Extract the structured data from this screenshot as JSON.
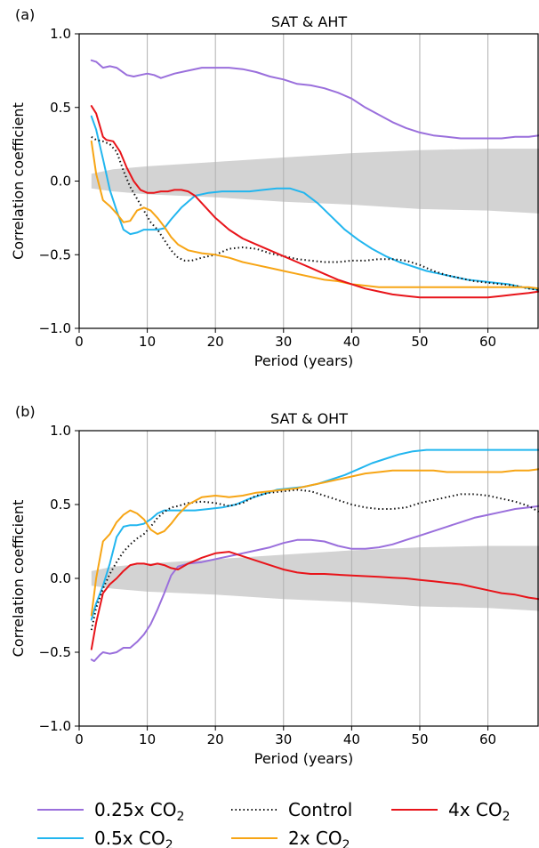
{
  "legend": {
    "items": [
      {
        "label": "0.25x CO",
        "sub": "2",
        "color": "#9a6fdc",
        "dash": "solid"
      },
      {
        "label": "Control",
        "sub": "",
        "color": "#111111",
        "dash": "dotted"
      },
      {
        "label": "4x CO",
        "sub": "2",
        "color": "#e8141a",
        "dash": "solid"
      },
      {
        "label": "0.5x CO",
        "sub": "2",
        "color": "#22b6ef",
        "dash": "solid"
      },
      {
        "label": "2x CO",
        "sub": "2",
        "color": "#f7a515",
        "dash": "solid"
      }
    ]
  },
  "chart_data": [
    {
      "type": "line",
      "panel_label": "(a)",
      "title": "SAT & AHT",
      "xlabel": "Period (years)",
      "ylabel": "Correlation coefficient",
      "xlim": [
        0,
        67.5
      ],
      "ylim": [
        -1.0,
        1.0
      ],
      "xticks": [
        0,
        10,
        20,
        30,
        40,
        50,
        60
      ],
      "yticks": [
        -1.0,
        -0.5,
        0.0,
        0.5,
        1.0
      ],
      "ytick_labels": [
        "−1.0",
        "−0.5",
        "0.0",
        "0.5",
        "1.0"
      ],
      "grid": "vertical",
      "band": {
        "x": [
          1.8,
          5,
          10,
          20,
          30,
          40,
          50,
          60,
          67.5
        ],
        "lower": [
          -0.05,
          -0.07,
          -0.09,
          -0.11,
          -0.14,
          -0.16,
          -0.19,
          -0.2,
          -0.22
        ],
        "upper": [
          0.05,
          0.08,
          0.1,
          0.13,
          0.16,
          0.19,
          0.21,
          0.22,
          0.22
        ]
      },
      "series": [
        {
          "name": "0.25x CO2",
          "color": "#9a6fdc",
          "dash": "solid",
          "x": [
            1.8,
            2.5,
            3.5,
            4.5,
            5.5,
            7,
            8,
            9,
            10,
            11,
            12,
            14,
            16,
            18,
            20,
            22,
            24,
            26,
            28,
            30,
            32,
            34,
            36,
            38,
            40,
            42,
            44,
            46,
            48,
            50,
            52,
            54,
            56,
            58,
            60,
            62,
            64,
            66,
            67.5
          ],
          "y": [
            0.82,
            0.81,
            0.77,
            0.78,
            0.77,
            0.72,
            0.71,
            0.72,
            0.73,
            0.72,
            0.7,
            0.73,
            0.75,
            0.77,
            0.77,
            0.77,
            0.76,
            0.74,
            0.71,
            0.69,
            0.66,
            0.65,
            0.63,
            0.6,
            0.56,
            0.5,
            0.45,
            0.4,
            0.36,
            0.33,
            0.31,
            0.3,
            0.29,
            0.29,
            0.29,
            0.29,
            0.3,
            0.3,
            0.31
          ]
        },
        {
          "name": "0.5x CO2",
          "color": "#22b6ef",
          "dash": "solid",
          "x": [
            1.8,
            2.5,
            3.5,
            4.5,
            5.5,
            6.5,
            7.5,
            8.5,
            9.5,
            10.5,
            11.5,
            12.5,
            13.5,
            15,
            17,
            19,
            21,
            23,
            25,
            27,
            29,
            31,
            33,
            35,
            37,
            39,
            41,
            43,
            45,
            47,
            49,
            51,
            53,
            55,
            57,
            59,
            61,
            63,
            65,
            67.5
          ],
          "y": [
            0.44,
            0.35,
            0.15,
            -0.06,
            -0.2,
            -0.33,
            -0.36,
            -0.35,
            -0.33,
            -0.33,
            -0.33,
            -0.32,
            -0.26,
            -0.18,
            -0.1,
            -0.08,
            -0.07,
            -0.07,
            -0.07,
            -0.06,
            -0.05,
            -0.05,
            -0.08,
            -0.15,
            -0.24,
            -0.33,
            -0.4,
            -0.46,
            -0.51,
            -0.55,
            -0.58,
            -0.61,
            -0.63,
            -0.65,
            -0.67,
            -0.68,
            -0.69,
            -0.7,
            -0.72,
            -0.74
          ]
        },
        {
          "name": "Control",
          "color": "#111111",
          "dash": "dotted",
          "x": [
            1.8,
            2.5,
            3.5,
            4.5,
            5.5,
            6.5,
            7.5,
            8.5,
            9.5,
            10.5,
            11.5,
            12.5,
            13.5,
            14.5,
            15.5,
            16.5,
            18,
            20,
            22,
            24,
            26,
            28,
            30,
            32,
            34,
            36,
            38,
            40,
            42,
            44,
            46,
            48,
            50,
            52,
            54,
            56,
            58,
            60,
            62,
            64,
            66,
            67.5
          ],
          "y": [
            0.3,
            0.28,
            0.27,
            0.25,
            0.2,
            0.07,
            -0.04,
            -0.12,
            -0.2,
            -0.28,
            -0.33,
            -0.4,
            -0.47,
            -0.52,
            -0.54,
            -0.54,
            -0.52,
            -0.5,
            -0.46,
            -0.45,
            -0.46,
            -0.49,
            -0.51,
            -0.53,
            -0.54,
            -0.55,
            -0.55,
            -0.54,
            -0.54,
            -0.53,
            -0.53,
            -0.54,
            -0.57,
            -0.61,
            -0.64,
            -0.66,
            -0.68,
            -0.69,
            -0.7,
            -0.71,
            -0.73,
            -0.74
          ]
        },
        {
          "name": "2x CO2",
          "color": "#f7a515",
          "dash": "solid",
          "x": [
            1.8,
            2.5,
            3.5,
            4.5,
            5.5,
            6.5,
            7.5,
            8.5,
            9.5,
            10.5,
            11.5,
            12.5,
            13.5,
            14.5,
            16,
            18,
            20,
            22,
            24,
            26,
            28,
            30,
            32,
            34,
            36,
            38,
            40,
            42,
            44,
            46,
            48,
            50,
            52,
            54,
            56,
            58,
            60,
            62,
            64,
            66,
            67.5
          ],
          "y": [
            0.27,
            0.05,
            -0.13,
            -0.17,
            -0.22,
            -0.28,
            -0.27,
            -0.2,
            -0.18,
            -0.2,
            -0.25,
            -0.31,
            -0.38,
            -0.43,
            -0.47,
            -0.49,
            -0.5,
            -0.52,
            -0.55,
            -0.57,
            -0.59,
            -0.61,
            -0.63,
            -0.65,
            -0.67,
            -0.68,
            -0.7,
            -0.71,
            -0.72,
            -0.72,
            -0.72,
            -0.72,
            -0.72,
            -0.72,
            -0.72,
            -0.72,
            -0.72,
            -0.72,
            -0.72,
            -0.72,
            -0.73
          ]
        },
        {
          "name": "4x CO2",
          "color": "#e8141a",
          "dash": "solid",
          "x": [
            1.8,
            2.5,
            3,
            3.5,
            4,
            5,
            6,
            7,
            8,
            9,
            10,
            11,
            12,
            13,
            14,
            15,
            16,
            17,
            18,
            20,
            22,
            24,
            26,
            28,
            30,
            32,
            34,
            36,
            38,
            40,
            42,
            44,
            46,
            48,
            50,
            52,
            54,
            56,
            58,
            60,
            62,
            64,
            66,
            67.5
          ],
          "y": [
            0.51,
            0.46,
            0.38,
            0.3,
            0.28,
            0.27,
            0.2,
            0.09,
            0.0,
            -0.06,
            -0.08,
            -0.08,
            -0.07,
            -0.07,
            -0.06,
            -0.06,
            -0.07,
            -0.1,
            -0.15,
            -0.25,
            -0.33,
            -0.39,
            -0.43,
            -0.47,
            -0.51,
            -0.55,
            -0.59,
            -0.63,
            -0.67,
            -0.7,
            -0.73,
            -0.75,
            -0.77,
            -0.78,
            -0.79,
            -0.79,
            -0.79,
            -0.79,
            -0.79,
            -0.79,
            -0.78,
            -0.77,
            -0.76,
            -0.75
          ]
        }
      ]
    },
    {
      "type": "line",
      "panel_label": "(b)",
      "title": "SAT & OHT",
      "xlabel": "Period (years)",
      "ylabel": "Correlation coefficient",
      "xlim": [
        0,
        67.5
      ],
      "ylim": [
        -1.0,
        1.0
      ],
      "xticks": [
        0,
        10,
        20,
        30,
        40,
        50,
        60
      ],
      "yticks": [
        -1.0,
        -0.5,
        0.0,
        0.5,
        1.0
      ],
      "ytick_labels": [
        "−1.0",
        "−0.5",
        "0.0",
        "0.5",
        "1.0"
      ],
      "grid": "vertical",
      "band": {
        "x": [
          1.8,
          5,
          10,
          20,
          30,
          40,
          50,
          60,
          67.5
        ],
        "lower": [
          -0.05,
          -0.07,
          -0.09,
          -0.11,
          -0.14,
          -0.16,
          -0.19,
          -0.2,
          -0.22
        ],
        "upper": [
          0.05,
          0.08,
          0.1,
          0.13,
          0.16,
          0.19,
          0.21,
          0.22,
          0.22
        ]
      },
      "series": [
        {
          "name": "0.25x CO2",
          "color": "#9a6fdc",
          "dash": "solid",
          "x": [
            1.8,
            2.2,
            3,
            3.5,
            4.5,
            5.5,
            6.5,
            7.5,
            8.5,
            9.5,
            10.5,
            11.5,
            12.5,
            13.5,
            14.5,
            16,
            18,
            20,
            22,
            24,
            26,
            28,
            30,
            32,
            34,
            36,
            38,
            40,
            42,
            44,
            46,
            48,
            50,
            52,
            54,
            56,
            58,
            60,
            62,
            64,
            66,
            67.5
          ],
          "y": [
            -0.55,
            -0.56,
            -0.52,
            -0.5,
            -0.51,
            -0.5,
            -0.47,
            -0.47,
            -0.43,
            -0.38,
            -0.31,
            -0.21,
            -0.1,
            0.02,
            0.08,
            0.1,
            0.11,
            0.13,
            0.15,
            0.17,
            0.19,
            0.21,
            0.24,
            0.26,
            0.26,
            0.25,
            0.22,
            0.2,
            0.2,
            0.21,
            0.23,
            0.26,
            0.29,
            0.32,
            0.35,
            0.38,
            0.41,
            0.43,
            0.45,
            0.47,
            0.48,
            0.49
          ]
        },
        {
          "name": "0.5x CO2",
          "color": "#22b6ef",
          "dash": "solid",
          "x": [
            1.8,
            2.5,
            3.5,
            4.5,
            5.5,
            6.5,
            7.5,
            8.5,
            9.5,
            10.5,
            11.5,
            12.5,
            13.5,
            15,
            17,
            19,
            21,
            23,
            25,
            27,
            29,
            31,
            33,
            35,
            37,
            39,
            41,
            43,
            45,
            47,
            49,
            51,
            53,
            55,
            57,
            59,
            61,
            63,
            65,
            67.5
          ],
          "y": [
            -0.28,
            -0.17,
            -0.05,
            0.1,
            0.28,
            0.35,
            0.36,
            0.36,
            0.37,
            0.4,
            0.44,
            0.46,
            0.46,
            0.46,
            0.46,
            0.47,
            0.48,
            0.5,
            0.54,
            0.57,
            0.6,
            0.61,
            0.62,
            0.64,
            0.67,
            0.7,
            0.74,
            0.78,
            0.81,
            0.84,
            0.86,
            0.87,
            0.87,
            0.87,
            0.87,
            0.87,
            0.87,
            0.87,
            0.87,
            0.87
          ]
        },
        {
          "name": "Control",
          "color": "#111111",
          "dash": "dotted",
          "x": [
            1.8,
            2.5,
            3.5,
            4.5,
            5.5,
            6.5,
            7.5,
            8.5,
            9.5,
            10.5,
            11.5,
            12.5,
            13.5,
            14.5,
            16,
            18,
            20,
            22,
            24,
            26,
            28,
            30,
            32,
            34,
            36,
            38,
            40,
            42,
            44,
            46,
            48,
            50,
            52,
            54,
            56,
            58,
            60,
            62,
            64,
            66,
            67.5
          ],
          "y": [
            -0.35,
            -0.2,
            -0.07,
            0.03,
            0.11,
            0.18,
            0.23,
            0.27,
            0.3,
            0.35,
            0.41,
            0.45,
            0.48,
            0.49,
            0.51,
            0.52,
            0.51,
            0.49,
            0.51,
            0.56,
            0.58,
            0.59,
            0.6,
            0.59,
            0.56,
            0.53,
            0.5,
            0.48,
            0.47,
            0.47,
            0.48,
            0.51,
            0.53,
            0.55,
            0.57,
            0.57,
            0.56,
            0.54,
            0.52,
            0.49,
            0.45
          ]
        },
        {
          "name": "2x CO2",
          "color": "#f7a515",
          "dash": "solid",
          "x": [
            1.8,
            2.5,
            3.5,
            4.5,
            5.5,
            6.5,
            7.5,
            8.5,
            9.5,
            10.5,
            11.5,
            12.5,
            13.5,
            14.5,
            16,
            18,
            20,
            22,
            24,
            26,
            28,
            30,
            32,
            34,
            36,
            38,
            40,
            42,
            44,
            46,
            48,
            50,
            52,
            54,
            56,
            58,
            60,
            62,
            64,
            66,
            67.5
          ],
          "y": [
            -0.25,
            0.0,
            0.25,
            0.3,
            0.38,
            0.43,
            0.46,
            0.44,
            0.4,
            0.33,
            0.3,
            0.32,
            0.37,
            0.43,
            0.5,
            0.55,
            0.56,
            0.55,
            0.56,
            0.58,
            0.59,
            0.6,
            0.61,
            0.63,
            0.65,
            0.67,
            0.69,
            0.71,
            0.72,
            0.73,
            0.73,
            0.73,
            0.73,
            0.72,
            0.72,
            0.72,
            0.72,
            0.72,
            0.73,
            0.73,
            0.74
          ]
        },
        {
          "name": "4x CO2",
          "color": "#e8141a",
          "dash": "solid",
          "x": [
            1.8,
            2.5,
            3.5,
            4.5,
            5.5,
            6.5,
            7.5,
            8.5,
            9.5,
            10.5,
            11.5,
            12.5,
            13.5,
            14.5,
            16,
            18,
            20,
            22,
            24,
            26,
            28,
            30,
            32,
            34,
            36,
            38,
            40,
            42,
            44,
            46,
            48,
            50,
            52,
            54,
            56,
            58,
            60,
            62,
            64,
            66,
            67.5
          ],
          "y": [
            -0.48,
            -0.3,
            -0.1,
            -0.04,
            0.0,
            0.05,
            0.09,
            0.1,
            0.1,
            0.09,
            0.1,
            0.09,
            0.07,
            0.06,
            0.1,
            0.14,
            0.17,
            0.18,
            0.15,
            0.12,
            0.09,
            0.06,
            0.04,
            0.03,
            0.03,
            0.025,
            0.02,
            0.015,
            0.01,
            0.005,
            0.0,
            -0.01,
            -0.02,
            -0.03,
            -0.04,
            -0.06,
            -0.08,
            -0.1,
            -0.11,
            -0.13,
            -0.14
          ]
        }
      ]
    }
  ]
}
